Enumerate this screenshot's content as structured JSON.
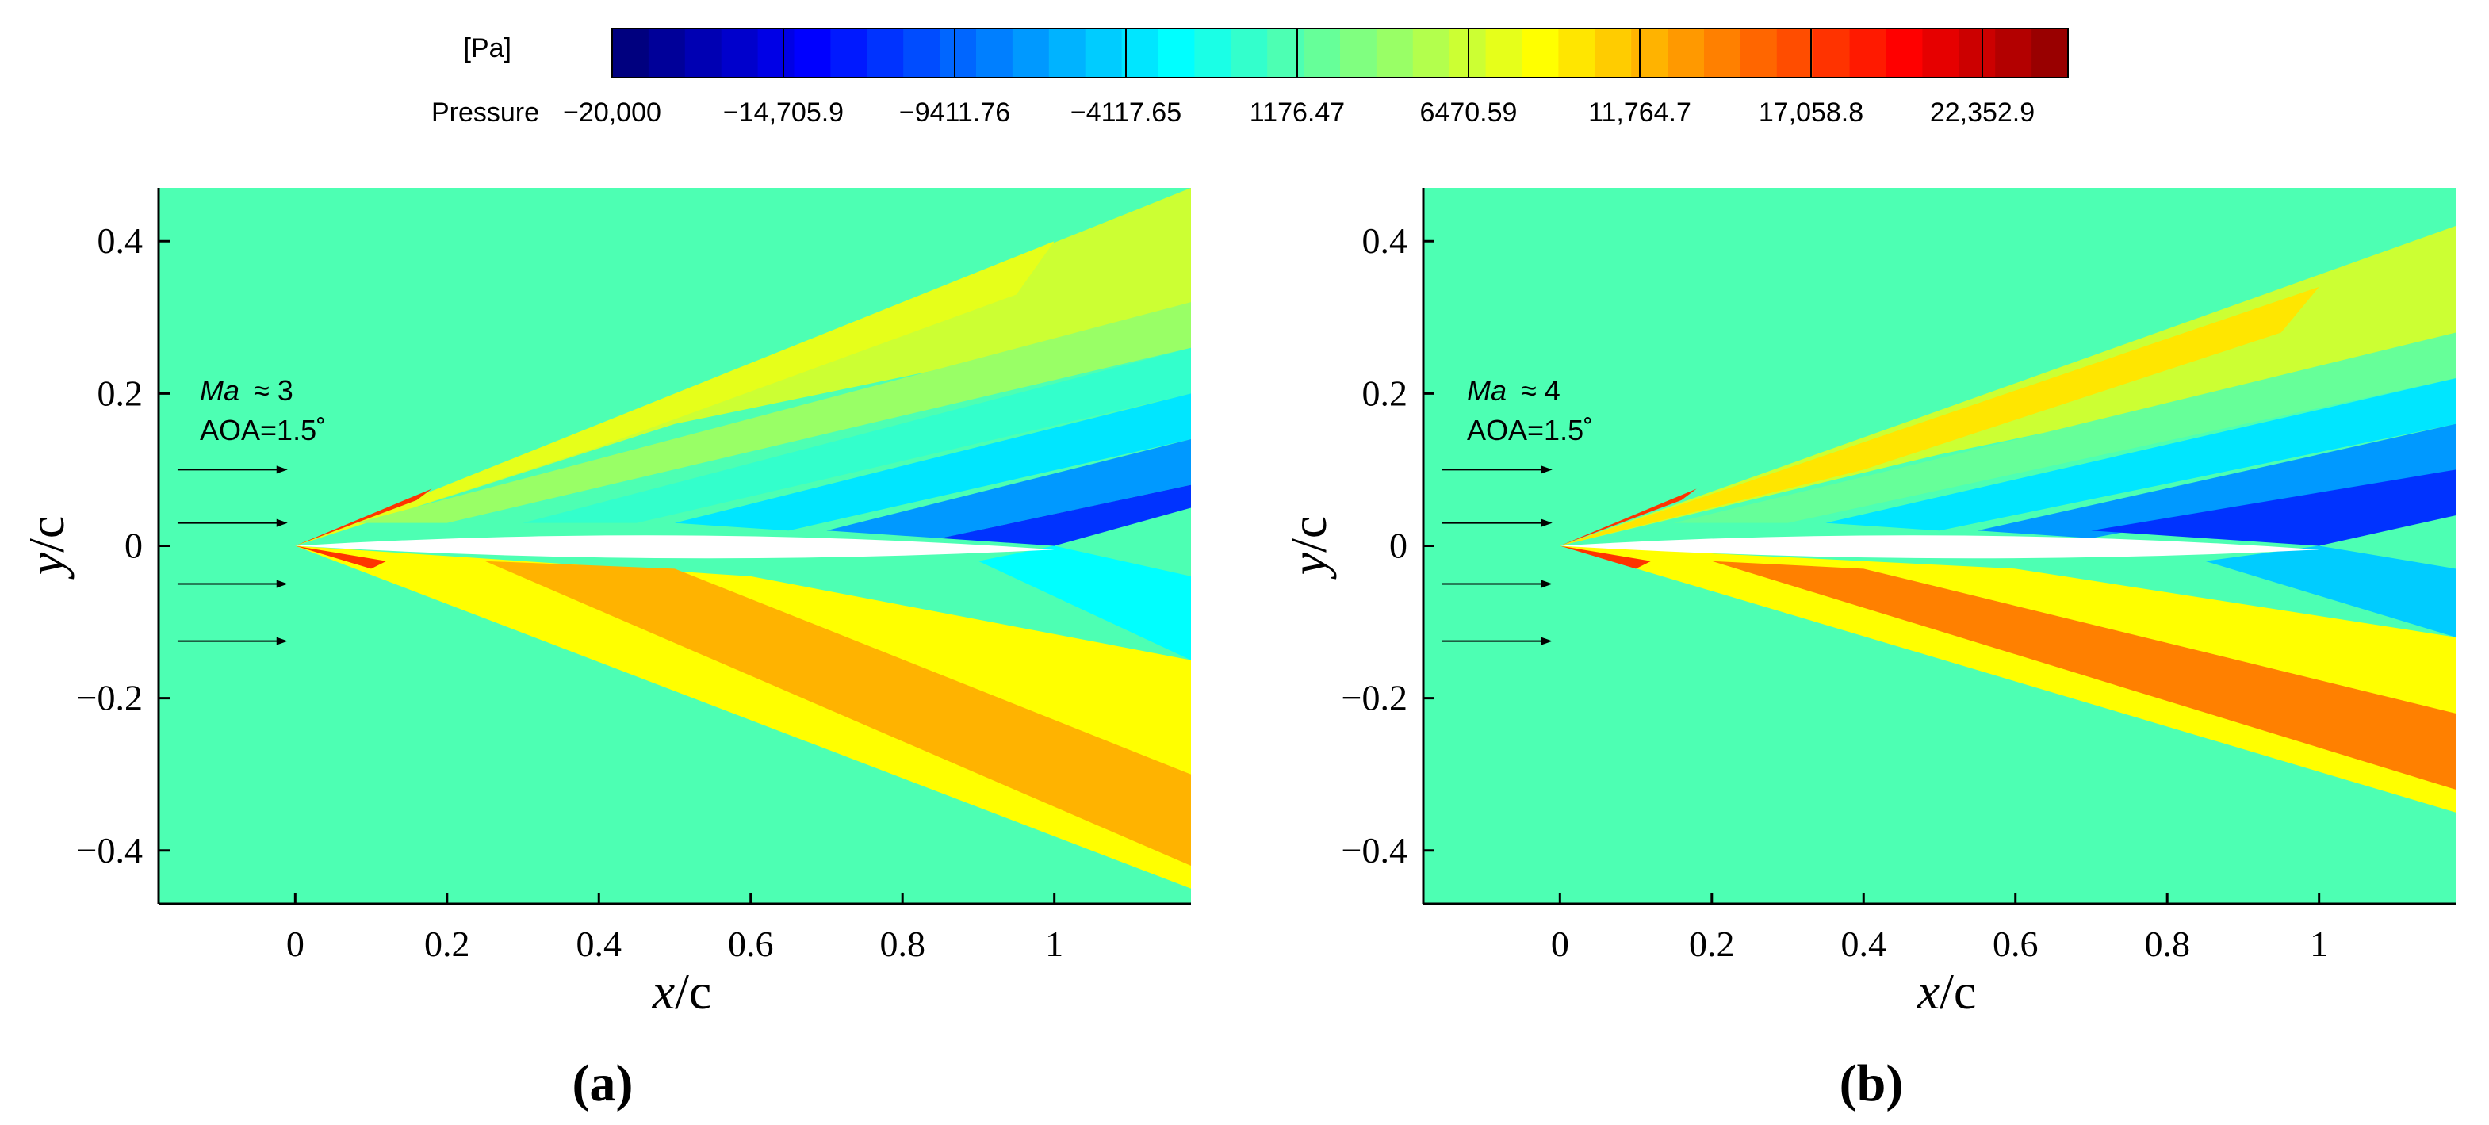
{
  "chart_data": {
    "type": "heatmap",
    "colorbar": {
      "unit": "[Pa]",
      "label": "Pressure",
      "range": [
        -20000,
        25000
      ],
      "tick_labels": [
        "−20,000",
        "−14,705.9",
        "−9411.76",
        "−4117.65",
        "1176.47",
        "6470.59",
        "11,764.7",
        "17,058.8",
        "22,352.9"
      ],
      "tick_values": [
        -20000,
        -14705.9,
        -9411.76,
        -4117.65,
        1176.47,
        6470.59,
        11764.7,
        17058.8,
        22352.9
      ],
      "colors": [
        "#00007f",
        "#000099",
        "#0000b3",
        "#0000cc",
        "#0000e6",
        "#0000ff",
        "#0019ff",
        "#0033ff",
        "#004cff",
        "#0066ff",
        "#007fff",
        "#0099ff",
        "#00b3ff",
        "#00ccff",
        "#00e6ff",
        "#00ffff",
        "#1affe6",
        "#33ffcc",
        "#4dffb3",
        "#66ff99",
        "#80ff80",
        "#99ff66",
        "#b3ff4d",
        "#ccff33",
        "#e6ff1a",
        "#ffff00",
        "#ffe600",
        "#ffcc00",
        "#ffb300",
        "#ff9900",
        "#ff8000",
        "#ff6600",
        "#ff4d00",
        "#ff3300",
        "#ff1a00",
        "#ff0000",
        "#e60000",
        "#cc0000",
        "#b30000",
        "#990000"
      ]
    },
    "panels": [
      {
        "id": "a",
        "caption": "(a)",
        "annotation_mach": "Ma",
        "annotation_mach_value": "≈ 3",
        "annotation_aoa": "AOA=1.5˚",
        "xlabel": "x/c",
        "ylabel": "y/c",
        "xlim": [
          -0.18,
          1.18
        ],
        "ylim": [
          -0.47,
          0.47
        ],
        "xticks": [
          0,
          0.2,
          0.4,
          0.6,
          0.8,
          1
        ],
        "xtick_labels": [
          "0",
          "0.2",
          "0.4",
          "0.6",
          "0.8",
          "1"
        ],
        "yticks": [
          0.4,
          0.2,
          0,
          -0.2,
          -0.4
        ],
        "ytick_labels": [
          "0.4",
          "0.2",
          "0",
          "−0.2",
          "−0.4"
        ],
        "freestream_color": "#4dffb3",
        "regions": [
          {
            "name": "upper-compression-outer",
            "color": "#ccff33",
            "points": [
              [
                0,
                0
              ],
              [
                1.18,
                0.47
              ],
              [
                1.18,
                0.3
              ],
              [
                0.5,
                0.16
              ],
              [
                0,
                0
              ]
            ]
          },
          {
            "name": "upper-compression-core",
            "color": "#e6ff1a",
            "points": [
              [
                0,
                0
              ],
              [
                1.0,
                0.4
              ],
              [
                0.95,
                0.33
              ],
              [
                0.4,
                0.13
              ],
              [
                0,
                0
              ]
            ]
          },
          {
            "name": "upper-expansion-1",
            "color": "#99ff66",
            "points": [
              [
                0.08,
                0.03
              ],
              [
                1.18,
                0.32
              ],
              [
                1.18,
                0.26
              ],
              [
                0.2,
                0.03
              ]
            ]
          },
          {
            "name": "upper-expansion-2",
            "color": "#33ffcc",
            "points": [
              [
                0.3,
                0.03
              ],
              [
                1.18,
                0.26
              ],
              [
                1.18,
                0.2
              ],
              [
                0.45,
                0.03
              ]
            ]
          },
          {
            "name": "upper-expansion-3",
            "color": "#00e6ff",
            "points": [
              [
                0.5,
                0.03
              ],
              [
                1.18,
                0.2
              ],
              [
                1.18,
                0.14
              ],
              [
                0.65,
                0.02
              ]
            ]
          },
          {
            "name": "upper-expansion-4",
            "color": "#0099ff",
            "points": [
              [
                0.7,
                0.02
              ],
              [
                1.18,
                0.14
              ],
              [
                1.18,
                0.08
              ],
              [
                0.85,
                0.01
              ]
            ]
          },
          {
            "name": "upper-expansion-5",
            "color": "#0033ff",
            "points": [
              [
                0.85,
                0.01
              ],
              [
                1.18,
                0.08
              ],
              [
                1.18,
                0.05
              ],
              [
                1.0,
                0.0
              ]
            ]
          },
          {
            "name": "lower-compression-outer",
            "color": "#ffff00",
            "points": [
              [
                0,
                0
              ],
              [
                1.18,
                -0.45
              ],
              [
                1.18,
                -0.15
              ],
              [
                0.6,
                -0.04
              ],
              [
                0,
                0
              ]
            ]
          },
          {
            "name": "lower-compression-core",
            "color": "#ffb300",
            "points": [
              [
                0.25,
                -0.02
              ],
              [
                1.18,
                -0.42
              ],
              [
                1.18,
                -0.3
              ],
              [
                0.5,
                -0.03
              ]
            ]
          },
          {
            "name": "lower-wake",
            "color": "#00ffff",
            "points": [
              [
                0.9,
                -0.02
              ],
              [
                1.18,
                -0.15
              ],
              [
                1.18,
                -0.04
              ],
              [
                1.0,
                0.0
              ]
            ]
          }
        ]
      },
      {
        "id": "b",
        "caption": "(b)",
        "annotation_mach": "Ma",
        "annotation_mach_value": "≈ 4",
        "annotation_aoa": "AOA=1.5˚",
        "xlabel": "x/c",
        "ylabel": "y/c",
        "xlim": [
          -0.18,
          1.18
        ],
        "ylim": [
          -0.47,
          0.47
        ],
        "xticks": [
          0,
          0.2,
          0.4,
          0.6,
          0.8,
          1
        ],
        "xtick_labels": [
          "0",
          "0.2",
          "0.4",
          "0.6",
          "0.8",
          "1"
        ],
        "yticks": [
          0.4,
          0.2,
          0,
          -0.2,
          -0.4
        ],
        "ytick_labels": [
          "0.4",
          "0.2",
          "0",
          "−0.2",
          "−0.4"
        ],
        "freestream_color": "#4dffb3",
        "regions": [
          {
            "name": "upper-compression-outer",
            "color": "#ccff33",
            "points": [
              [
                0,
                0
              ],
              [
                1.18,
                0.42
              ],
              [
                1.18,
                0.26
              ],
              [
                0.5,
                0.12
              ],
              [
                0,
                0
              ]
            ]
          },
          {
            "name": "upper-compression-core",
            "color": "#ffe600",
            "points": [
              [
                0,
                0
              ],
              [
                1.0,
                0.34
              ],
              [
                0.95,
                0.28
              ],
              [
                0.4,
                0.1
              ],
              [
                0,
                0
              ]
            ]
          },
          {
            "name": "upper-expansion-1",
            "color": "#66ff99",
            "points": [
              [
                0.15,
                0.03
              ],
              [
                1.18,
                0.28
              ],
              [
                1.18,
                0.22
              ],
              [
                0.3,
                0.03
              ]
            ]
          },
          {
            "name": "upper-expansion-2",
            "color": "#00e6ff",
            "points": [
              [
                0.35,
                0.03
              ],
              [
                1.18,
                0.22
              ],
              [
                1.18,
                0.16
              ],
              [
                0.5,
                0.02
              ]
            ]
          },
          {
            "name": "upper-expansion-3",
            "color": "#0099ff",
            "points": [
              [
                0.55,
                0.02
              ],
              [
                1.18,
                0.16
              ],
              [
                1.18,
                0.1
              ],
              [
                0.7,
                0.01
              ]
            ]
          },
          {
            "name": "upper-expansion-4",
            "color": "#0033ff",
            "points": [
              [
                0.7,
                0.02
              ],
              [
                1.18,
                0.1
              ],
              [
                1.18,
                0.04
              ],
              [
                1.0,
                0.0
              ]
            ]
          },
          {
            "name": "lower-compression-outer",
            "color": "#ffff00",
            "points": [
              [
                0,
                0
              ],
              [
                1.18,
                -0.35
              ],
              [
                1.18,
                -0.12
              ],
              [
                0.6,
                -0.03
              ],
              [
                0,
                0
              ]
            ]
          },
          {
            "name": "lower-compression-core",
            "color": "#ff8000",
            "points": [
              [
                0.2,
                -0.02
              ],
              [
                1.18,
                -0.32
              ],
              [
                1.18,
                -0.22
              ],
              [
                0.4,
                -0.03
              ]
            ]
          },
          {
            "name": "lower-wake",
            "color": "#00ccff",
            "points": [
              [
                0.85,
                -0.02
              ],
              [
                1.18,
                -0.12
              ],
              [
                1.18,
                -0.03
              ],
              [
                1.0,
                0.0
              ]
            ]
          }
        ]
      }
    ]
  }
}
